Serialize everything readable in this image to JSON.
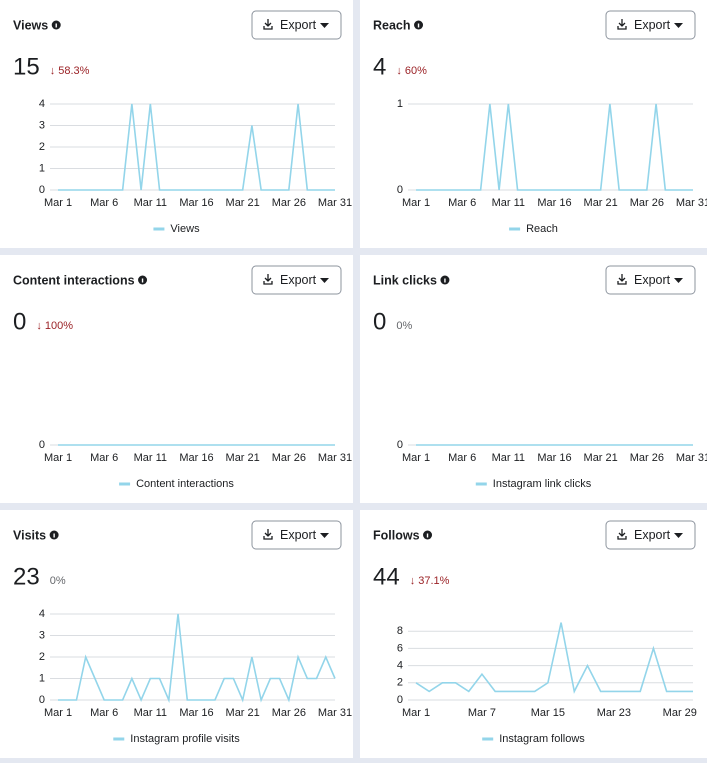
{
  "chart_data": [
    {
      "type": "line",
      "title": "Views",
      "total": 15,
      "change": "↓ 58.3%",
      "export": "Export",
      "categories": [
        "Mar 1",
        null,
        null,
        null,
        null,
        "Mar 6",
        null,
        null,
        null,
        null,
        "Mar 11",
        null,
        null,
        null,
        null,
        "Mar 16",
        null,
        null,
        null,
        null,
        "Mar 21",
        null,
        null,
        null,
        null,
        "Mar 26",
        null,
        null,
        null,
        null,
        "Mar 31"
      ],
      "series": [
        {
          "name": "Views",
          "color": "#93d5ea",
          "values": [
            0,
            0,
            0,
            0,
            0,
            0,
            0,
            0,
            4,
            0,
            4,
            0,
            0,
            0,
            0,
            0,
            0,
            0,
            0,
            0,
            0,
            3,
            0,
            0,
            0,
            0,
            4,
            0,
            0,
            0,
            0
          ]
        }
      ],
      "ylim": [
        0,
        4
      ],
      "yticks": [
        0,
        1,
        2,
        3,
        4
      ],
      "grid": true
    },
    {
      "type": "line",
      "title": "Reach",
      "total": 4,
      "change": "↓ 60%",
      "export": "Export",
      "categories": [
        "Mar 1",
        null,
        null,
        null,
        null,
        "Mar 6",
        null,
        null,
        null,
        null,
        "Mar 11",
        null,
        null,
        null,
        null,
        "Mar 16",
        null,
        null,
        null,
        null,
        "Mar 21",
        null,
        null,
        null,
        null,
        "Mar 26",
        null,
        null,
        null,
        null,
        "Mar 31"
      ],
      "series": [
        {
          "name": "Reach",
          "color": "#93d5ea",
          "values": [
            0,
            0,
            0,
            0,
            0,
            0,
            0,
            0,
            1,
            0,
            1,
            0,
            0,
            0,
            0,
            0,
            0,
            0,
            0,
            0,
            0,
            1,
            0,
            0,
            0,
            0,
            1,
            0,
            0,
            0,
            0
          ]
        }
      ],
      "ylim": [
        0,
        1
      ],
      "yticks": [
        0,
        1
      ],
      "grid": true
    },
    {
      "type": "line",
      "title": "Content interactions",
      "total": 0,
      "change": "↓ 100%",
      "export": "Export",
      "categories": [
        "Mar 1",
        null,
        null,
        null,
        null,
        "Mar 6",
        null,
        null,
        null,
        null,
        "Mar 11",
        null,
        null,
        null,
        null,
        "Mar 16",
        null,
        null,
        null,
        null,
        "Mar 21",
        null,
        null,
        null,
        null,
        "Mar 26",
        null,
        null,
        null,
        null,
        "Mar 31"
      ],
      "series": [
        {
          "name": "Content interactions",
          "color": "#93d5ea",
          "values": [
            0,
            0,
            0,
            0,
            0,
            0,
            0,
            0,
            0,
            0,
            0,
            0,
            0,
            0,
            0,
            0,
            0,
            0,
            0,
            0,
            0,
            0,
            0,
            0,
            0,
            0,
            0,
            0,
            0,
            0,
            0
          ]
        }
      ],
      "ylim": [
        0,
        1
      ],
      "yticks": [
        0
      ],
      "grid": true
    },
    {
      "type": "line",
      "title": "Link clicks",
      "total": 0,
      "change": "0%",
      "export": "Export",
      "categories": [
        "Mar 1",
        null,
        null,
        null,
        null,
        "Mar 6",
        null,
        null,
        null,
        null,
        "Mar 11",
        null,
        null,
        null,
        null,
        "Mar 16",
        null,
        null,
        null,
        null,
        "Mar 21",
        null,
        null,
        null,
        null,
        "Mar 26",
        null,
        null,
        null,
        null,
        "Mar 31"
      ],
      "series": [
        {
          "name": "Instagram link clicks",
          "color": "#93d5ea",
          "values": [
            0,
            0,
            0,
            0,
            0,
            0,
            0,
            0,
            0,
            0,
            0,
            0,
            0,
            0,
            0,
            0,
            0,
            0,
            0,
            0,
            0,
            0,
            0,
            0,
            0,
            0,
            0,
            0,
            0,
            0,
            0
          ]
        }
      ],
      "ylim": [
        0,
        1
      ],
      "yticks": [
        0
      ],
      "grid": true
    },
    {
      "type": "line",
      "title": "Visits",
      "total": 23,
      "change": "0%",
      "export": "Export",
      "categories": [
        "Mar 1",
        null,
        null,
        null,
        null,
        "Mar 6",
        null,
        null,
        null,
        null,
        "Mar 11",
        null,
        null,
        null,
        null,
        "Mar 16",
        null,
        null,
        null,
        null,
        "Mar 21",
        null,
        null,
        null,
        null,
        "Mar 26",
        null,
        null,
        null,
        null,
        "Mar 31"
      ],
      "series": [
        {
          "name": "Instagram profile visits",
          "color": "#93d5ea",
          "values": [
            0,
            0,
            0,
            2,
            1,
            0,
            0,
            0,
            1,
            0,
            1,
            1,
            0,
            4,
            0,
            0,
            0,
            0,
            1,
            1,
            0,
            2,
            0,
            1,
            1,
            0,
            2,
            1,
            1,
            2,
            1
          ]
        }
      ],
      "ylim": [
        0,
        4
      ],
      "yticks": [
        0,
        1,
        2,
        3,
        4
      ],
      "grid": true
    },
    {
      "type": "line",
      "title": "Follows",
      "total": 44,
      "change": "↓ 37.1%",
      "export": "Export",
      "categories": [
        "Mar 1",
        null,
        null,
        null,
        null,
        "Mar 7",
        null,
        null,
        null,
        null,
        "Mar 15",
        null,
        null,
        null,
        null,
        "Mar 23",
        null,
        null,
        null,
        null,
        "Mar 29",
        null
      ],
      "series": [
        {
          "name": "Instagram follows",
          "color": "#93d5ea",
          "values": [
            2,
            1,
            2,
            2,
            1,
            3,
            1,
            1,
            1,
            1,
            2,
            9,
            1,
            4,
            1,
            1,
            1,
            1,
            6,
            1,
            1,
            1
          ]
        }
      ],
      "ylim": [
        0,
        10
      ],
      "yticks": [
        0,
        2,
        4,
        6,
        8
      ],
      "grid": true
    }
  ]
}
